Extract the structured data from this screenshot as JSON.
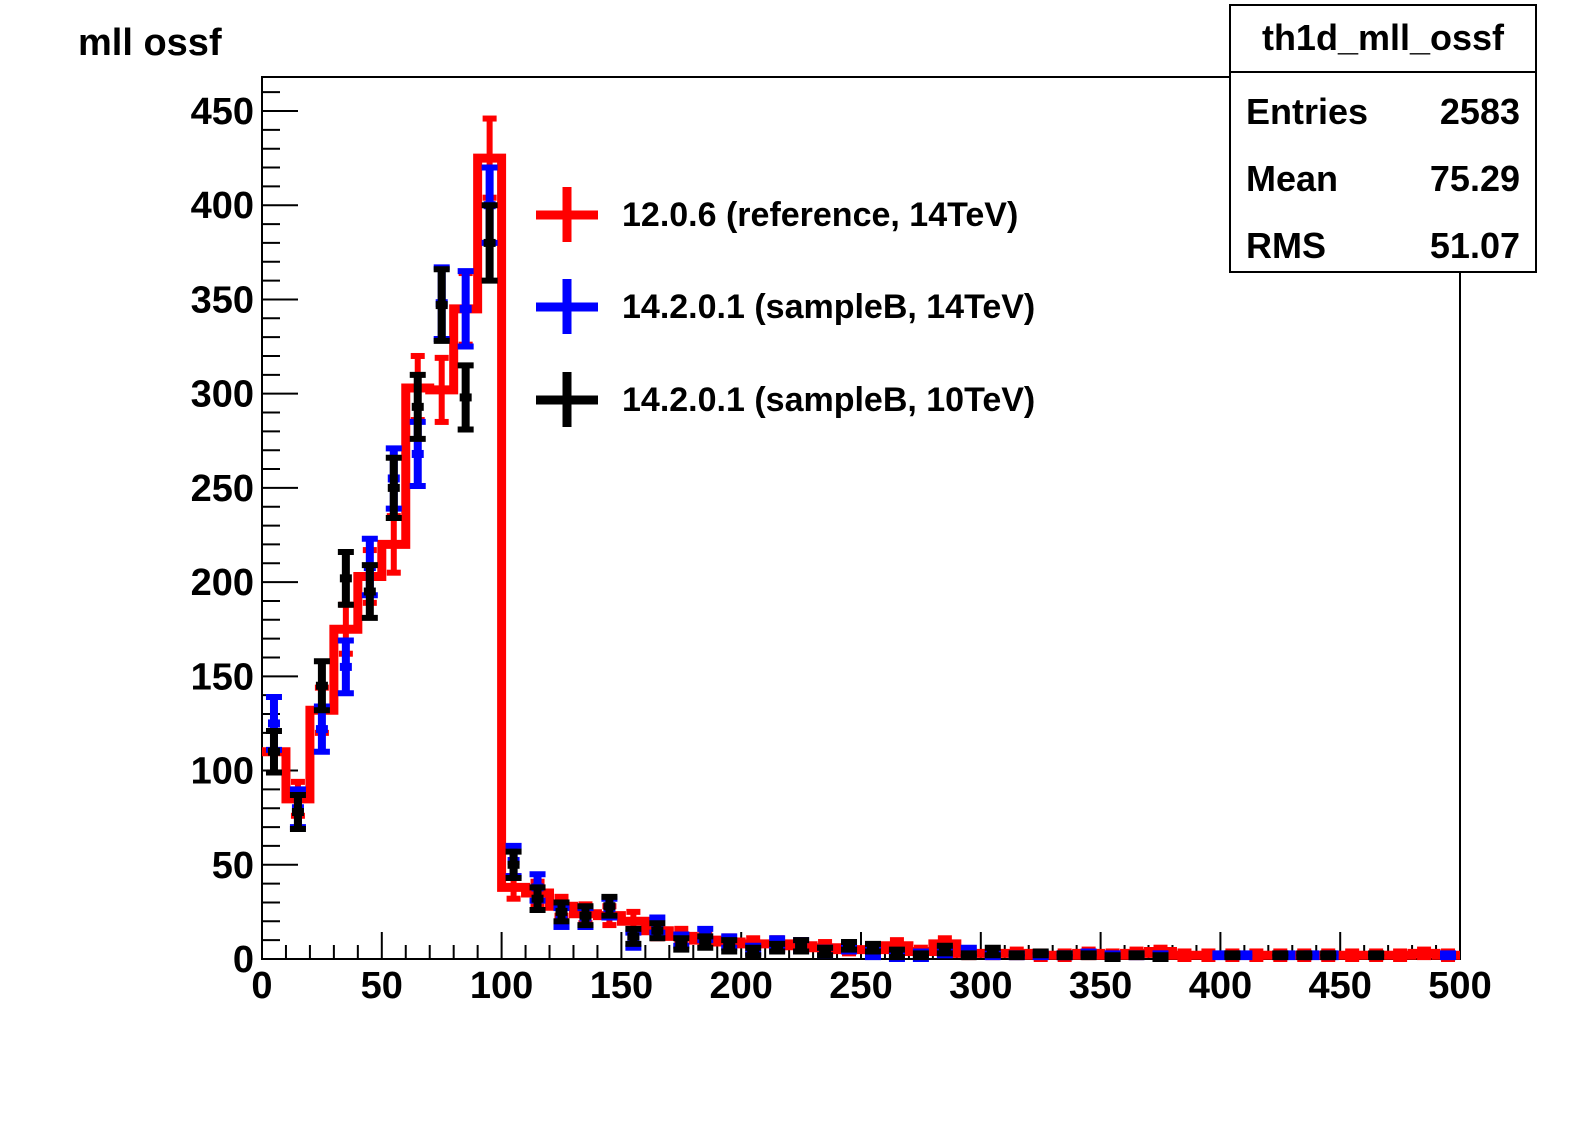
{
  "chart_data": {
    "type": "histogram",
    "title": "mll ossf",
    "xlabel": "",
    "ylabel": "",
    "xlim": [
      0,
      500
    ],
    "ylim": [
      0,
      450
    ],
    "x_ticks": [
      0,
      50,
      100,
      150,
      200,
      250,
      300,
      350,
      400,
      450,
      500
    ],
    "y_ticks": [
      0,
      50,
      100,
      150,
      200,
      250,
      300,
      350,
      400,
      450
    ],
    "legend_position": "top-center",
    "stats_box": {
      "name": "th1d_mll_ossf",
      "rows": [
        {
          "label": "Entries",
          "value": "2583"
        },
        {
          "label": "Mean",
          "value": "75.29"
        },
        {
          "label": "RMS",
          "value": "51.07"
        }
      ]
    },
    "series": [
      {
        "name": "12.0.6 (reference, 14TeV)",
        "color": "#ff0000",
        "style": "line+errorbar",
        "bin_width": 10,
        "bin_centers": [
          5,
          15,
          25,
          35,
          45,
          55,
          65,
          75,
          85,
          95,
          105,
          115,
          125,
          135,
          145,
          155,
          165,
          175,
          185,
          195,
          205,
          215,
          225,
          235,
          245,
          255,
          265,
          275,
          285,
          295,
          305,
          315,
          325,
          335,
          345,
          355,
          365,
          375,
          385,
          395,
          405,
          415,
          425,
          435,
          445,
          455,
          465,
          475,
          485,
          495
        ],
        "values": [
          110,
          85,
          132,
          175,
          203,
          220,
          303,
          302,
          345,
          425,
          38,
          35,
          28,
          24,
          23,
          20,
          15,
          12,
          10,
          9,
          8,
          8,
          7,
          6,
          5,
          5,
          7,
          4,
          8,
          3,
          3,
          3,
          2,
          2,
          3,
          2,
          3,
          4,
          2,
          2,
          2,
          2,
          2,
          2,
          2,
          2,
          2,
          2,
          3,
          2
        ],
        "errors": [
          11,
          9,
          12,
          13,
          14,
          15,
          17,
          17,
          19,
          21,
          6,
          6,
          5,
          5,
          5,
          5,
          4,
          4,
          3,
          3,
          3,
          3,
          3,
          3,
          2,
          2,
          3,
          2,
          3,
          2,
          2,
          2,
          2,
          2,
          2,
          2,
          2,
          2,
          2,
          2,
          2,
          2,
          2,
          2,
          2,
          2,
          2,
          2,
          2,
          2
        ]
      },
      {
        "name": "14.2.0.1 (sampleB, 14TeV)",
        "color": "#0000ff",
        "style": "errorbar",
        "points": [
          [
            5,
            125,
            14
          ],
          [
            15,
            80,
            10
          ],
          [
            25,
            122,
            12
          ],
          [
            35,
            155,
            14
          ],
          [
            45,
            208,
            15
          ],
          [
            55,
            255,
            16
          ],
          [
            65,
            268,
            17
          ],
          [
            75,
            348,
            19
          ],
          [
            85,
            345,
            20
          ],
          [
            95,
            400,
            20
          ],
          [
            105,
            52,
            8
          ],
          [
            115,
            38,
            7
          ],
          [
            125,
            22,
            5
          ],
          [
            135,
            22,
            5
          ],
          [
            145,
            27,
            5
          ],
          [
            155,
            10,
            4
          ],
          [
            165,
            18,
            4
          ],
          [
            175,
            10,
            3
          ],
          [
            185,
            13,
            3
          ],
          [
            195,
            9,
            3
          ],
          [
            205,
            5,
            2
          ],
          [
            215,
            8,
            3
          ],
          [
            225,
            7,
            3
          ],
          [
            235,
            4,
            2
          ],
          [
            245,
            6,
            2
          ],
          [
            255,
            3,
            2
          ],
          [
            265,
            2,
            2
          ],
          [
            275,
            2,
            2
          ],
          [
            285,
            4,
            2
          ],
          [
            295,
            4,
            2
          ],
          [
            305,
            2,
            1
          ],
          [
            315,
            2,
            1
          ],
          [
            325,
            2,
            1
          ],
          [
            335,
            2,
            1
          ],
          [
            345,
            3,
            1
          ],
          [
            355,
            2,
            1
          ],
          [
            365,
            2,
            1
          ],
          [
            375,
            2,
            1
          ],
          [
            400,
            2,
            1
          ],
          [
            410,
            2,
            1
          ],
          [
            428,
            2,
            1
          ],
          [
            438,
            2,
            1
          ],
          [
            446,
            2,
            1
          ],
          [
            495,
            2,
            1
          ]
        ]
      },
      {
        "name": "14.2.0.1 (sampleB, 10TeV)",
        "color": "#000000",
        "style": "errorbar",
        "points": [
          [
            5,
            110,
            11
          ],
          [
            15,
            78,
            9
          ],
          [
            25,
            145,
            13
          ],
          [
            35,
            202,
            14
          ],
          [
            45,
            195,
            14
          ],
          [
            55,
            250,
            16
          ],
          [
            65,
            293,
            17
          ],
          [
            75,
            347,
            19
          ],
          [
            85,
            298,
            17
          ],
          [
            95,
            380,
            20
          ],
          [
            105,
            50,
            7
          ],
          [
            115,
            32,
            6
          ],
          [
            125,
            25,
            5
          ],
          [
            135,
            23,
            5
          ],
          [
            145,
            28,
            5
          ],
          [
            155,
            12,
            4
          ],
          [
            165,
            15,
            4
          ],
          [
            175,
            8,
            3
          ],
          [
            185,
            9,
            3
          ],
          [
            195,
            7,
            3
          ],
          [
            205,
            4,
            2
          ],
          [
            215,
            6,
            2
          ],
          [
            225,
            7,
            3
          ],
          [
            235,
            4,
            2
          ],
          [
            245,
            7,
            2
          ],
          [
            255,
            6,
            2
          ],
          [
            265,
            3,
            2
          ],
          [
            275,
            2,
            1
          ],
          [
            285,
            5,
            2
          ],
          [
            295,
            2,
            1
          ],
          [
            305,
            4,
            2
          ],
          [
            315,
            2,
            1
          ],
          [
            325,
            3,
            1
          ],
          [
            335,
            2,
            1
          ],
          [
            345,
            2,
            1
          ],
          [
            355,
            1,
            1
          ],
          [
            365,
            2,
            1
          ],
          [
            375,
            1,
            1
          ],
          [
            405,
            2,
            1
          ],
          [
            425,
            2,
            1
          ],
          [
            435,
            2,
            1
          ],
          [
            445,
            2,
            1
          ],
          [
            465,
            2,
            1
          ]
        ]
      }
    ]
  }
}
